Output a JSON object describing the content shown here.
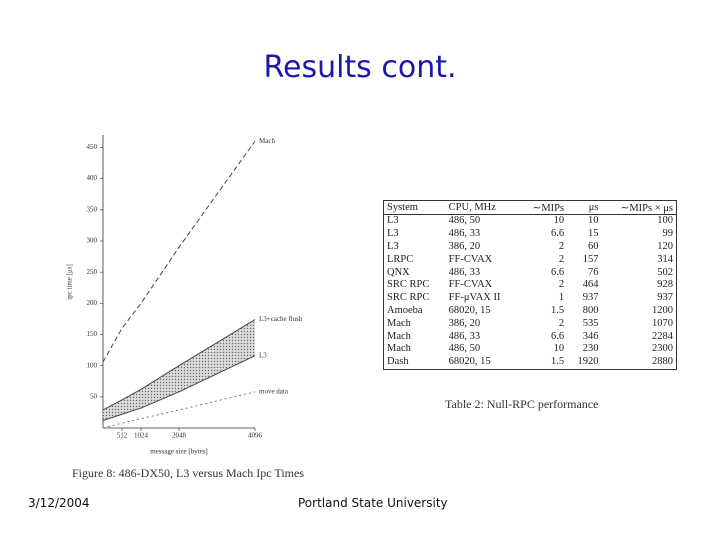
{
  "title": "Results cont.",
  "chart_data": {
    "type": "line",
    "x": [
      0,
      512,
      1024,
      2048,
      4096
    ],
    "xlim": [
      0,
      4096
    ],
    "xticks": [
      512,
      1024,
      2048,
      4096
    ],
    "ylim": [
      0,
      470
    ],
    "yticks": [
      50,
      100,
      150,
      200,
      250,
      300,
      350,
      400,
      450
    ],
    "x_label": "message size [bytes]",
    "y_label": "ipc time [μs]",
    "series": [
      {
        "name": "Mach",
        "color": "#444444",
        "dash": "5,3",
        "values": [
          106,
          160,
          200,
          290,
          460
        ]
      },
      {
        "name": "L3+cache flush",
        "color": "#444444",
        "dash": "none",
        "values": [
          29,
          45,
          62,
          100,
          174
        ]
      },
      {
        "name": "L3",
        "color": "#444444",
        "dash": "none",
        "values": [
          12,
          22,
          32,
          58,
          116
        ]
      },
      {
        "name": "move data",
        "color": "#777777",
        "dash": "2,3",
        "values": [
          0,
          8,
          15,
          29,
          58
        ]
      }
    ],
    "caption": "Figure 8: 486-DX50, L3 versus Mach Ipc Times"
  },
  "table": {
    "header": [
      "System",
      "CPU, MHz",
      "∼MIPs",
      "μs",
      "∼MIPs × μs"
    ],
    "rows": [
      [
        "L3",
        "486, 50",
        "10",
        "10",
        "100"
      ],
      [
        "L3",
        "486, 33",
        "6.6",
        "15",
        "99"
      ],
      [
        "L3",
        "386, 20",
        "2",
        "60",
        "120"
      ],
      [
        "LRPC",
        "FF-CVAX",
        "2",
        "157",
        "314"
      ],
      [
        "QNX",
        "486, 33",
        "6.6",
        "76",
        "502"
      ],
      [
        "SRC RPC",
        "FF-CVAX",
        "2",
        "464",
        "928"
      ],
      [
        "SRC RPC",
        "FF-μVAX II",
        "1",
        "937",
        "937"
      ],
      [
        "Amoeba",
        "68020, 15",
        "1.5",
        "800",
        "1200"
      ],
      [
        "Mach",
        "386, 20",
        "2",
        "535",
        "1070"
      ],
      [
        "Mach",
        "486, 33",
        "6.6",
        "346",
        "2284"
      ],
      [
        "Mach",
        "486, 50",
        "10",
        "230",
        "2300"
      ],
      [
        "Dash",
        "68020, 15",
        "1.5",
        "1920",
        "2880"
      ]
    ],
    "caption": "Table 2: Null-RPC performance"
  },
  "footer": {
    "date": "3/12/2004",
    "org": "Portland State University"
  }
}
